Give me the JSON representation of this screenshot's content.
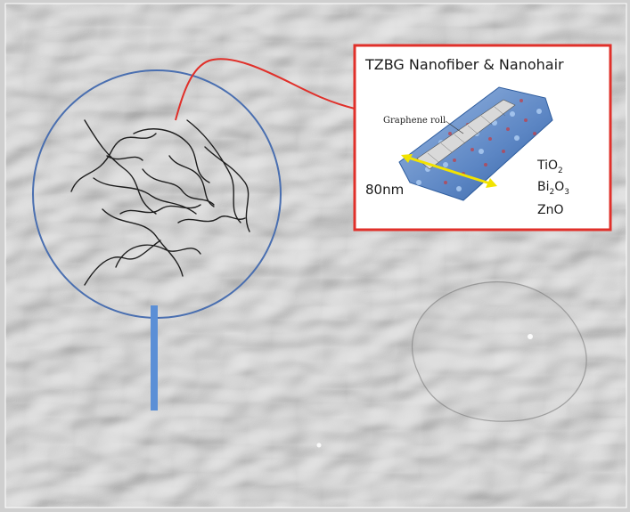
{
  "callout": {
    "title": "TZBG Nanofiber & Nanohair",
    "graphene_label": "Graphene roll",
    "dimension_label": "80nm",
    "materials": [
      {
        "base": "Ti",
        "sub1": "O",
        "sub1_num": "2",
        "rest": ""
      },
      {
        "base": "Bi",
        "sub1": "",
        "sub1_num": "2",
        "rest": "O",
        "rest_num": "3"
      },
      {
        "base": "ZnO"
      }
    ]
  },
  "colors": {
    "callout_border": "#e0302a",
    "connector_line": "#e0302a",
    "magnifier_circle": "#4a6fb0",
    "magnifier_handle": "#5b8fd6",
    "dimension_arrow": "#f2e300",
    "fiber_blue": "#3f7fc9",
    "fiber_red": "#c0404a"
  },
  "icons": {
    "magnifier": "magnifier-icon",
    "nanofiber_bundle": "nanofiber-bundle-icon"
  }
}
